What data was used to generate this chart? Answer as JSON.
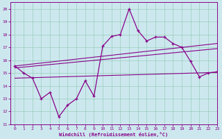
{
  "title": "",
  "xlabel": "Windchill (Refroidissement éolien,°C)",
  "ylabel": "",
  "bg_color": "#cce8ee",
  "line_color": "#880088",
  "grid_color": "#99ccbb",
  "xlim": [
    -0.5,
    23
  ],
  "ylim": [
    11,
    20.5
  ],
  "xticks": [
    0,
    1,
    2,
    3,
    4,
    5,
    6,
    7,
    8,
    9,
    10,
    11,
    12,
    13,
    14,
    15,
    16,
    17,
    18,
    19,
    20,
    21,
    22,
    23
  ],
  "yticks": [
    11,
    12,
    13,
    14,
    15,
    16,
    17,
    18,
    19,
    20
  ],
  "series1_x": [
    0,
    1,
    2,
    3,
    4,
    5,
    6,
    7,
    8,
    9,
    10,
    11,
    12,
    13,
    14,
    15,
    16,
    17,
    18,
    19,
    20,
    21,
    22,
    23
  ],
  "series1_y": [
    15.55,
    15.0,
    14.6,
    13.0,
    13.5,
    11.6,
    12.5,
    13.0,
    14.4,
    13.2,
    17.1,
    17.85,
    18.0,
    20.0,
    18.3,
    17.5,
    17.8,
    17.8,
    17.3,
    17.0,
    15.9,
    14.7,
    15.0,
    15.1
  ],
  "line1_x": [
    0,
    23
  ],
  "line1_y": [
    15.55,
    17.3
  ],
  "line2_x": [
    0,
    23
  ],
  "line2_y": [
    15.4,
    16.9
  ],
  "line3_x": [
    0,
    23
  ],
  "line3_y": [
    14.6,
    15.05
  ]
}
